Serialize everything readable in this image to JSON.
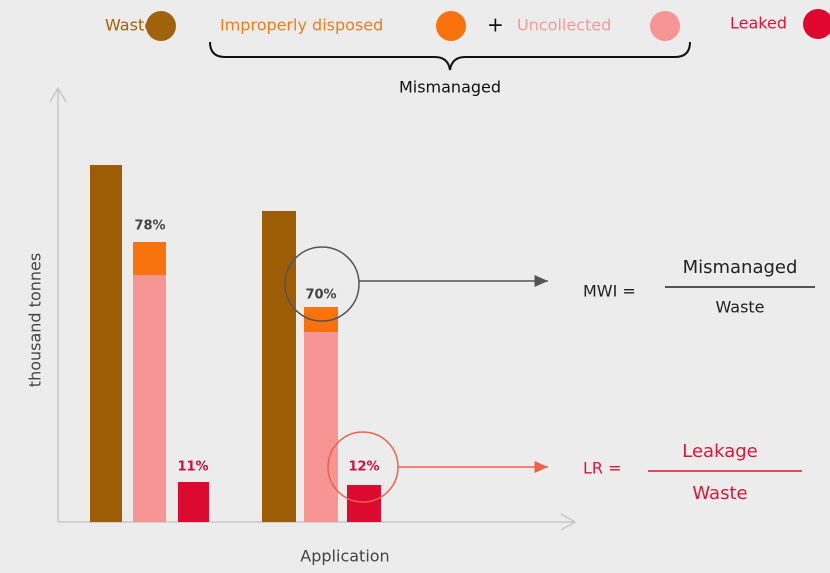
{
  "legend": {
    "waste": "Waste",
    "improperly_disposed": "Improperly disposed",
    "plus": "+",
    "uncollected": "Uncollected",
    "leaked": "Leaked",
    "group_label": "Mismanaged"
  },
  "axes": {
    "y_label": "thousand tonnes",
    "x_label": "Application"
  },
  "bar_labels": {
    "group1_mismanaged": "78%",
    "group1_leaked": "11%",
    "group2_mismanaged": "70%",
    "group2_leaked": "12%"
  },
  "formulas": {
    "mwi": {
      "lhs": "MWI =",
      "numerator": "Mismanaged",
      "denominator": "Waste"
    },
    "lr": {
      "lhs": "LR =",
      "numerator": "Leakage",
      "denominator": "Waste"
    }
  }
}
